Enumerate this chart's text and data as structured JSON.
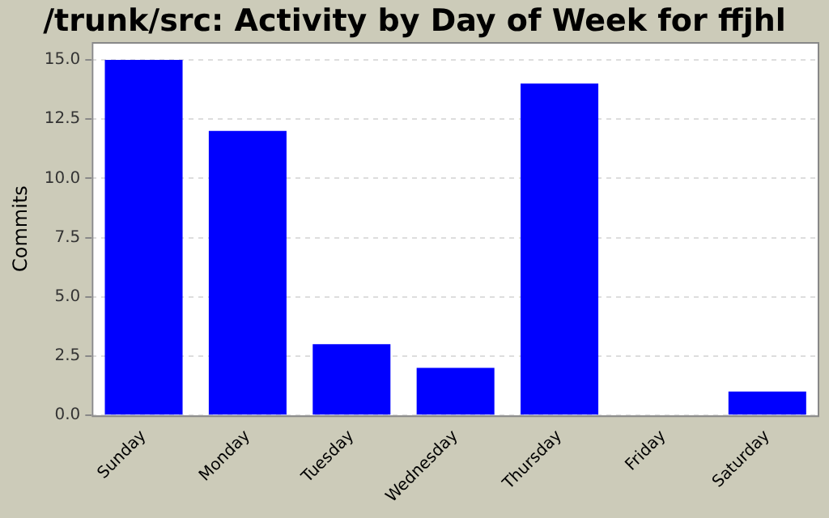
{
  "chart_data": {
    "type": "bar",
    "title": "/trunk/src: Activity by Day of Week for ffjhl",
    "ylabel": "Commits",
    "categories": [
      "Sunday",
      "Monday",
      "Tuesday",
      "Wednesday",
      "Thursday",
      "Friday",
      "Saturday"
    ],
    "values": [
      15,
      12,
      3,
      2,
      14,
      0,
      1
    ],
    "color": "#0000ff",
    "ylim": [
      0,
      15.75
    ],
    "yticks": [
      {
        "value": 0,
        "label": "0.0"
      },
      {
        "value": 2.5,
        "label": "2.5"
      },
      {
        "value": 5,
        "label": "5.0"
      },
      {
        "value": 7.5,
        "label": "7.5"
      },
      {
        "value": 10,
        "label": "10.0"
      },
      {
        "value": 12.5,
        "label": "12.5"
      },
      {
        "value": 15,
        "label": "15.0"
      }
    ],
    "grid": "y",
    "legend": false
  }
}
